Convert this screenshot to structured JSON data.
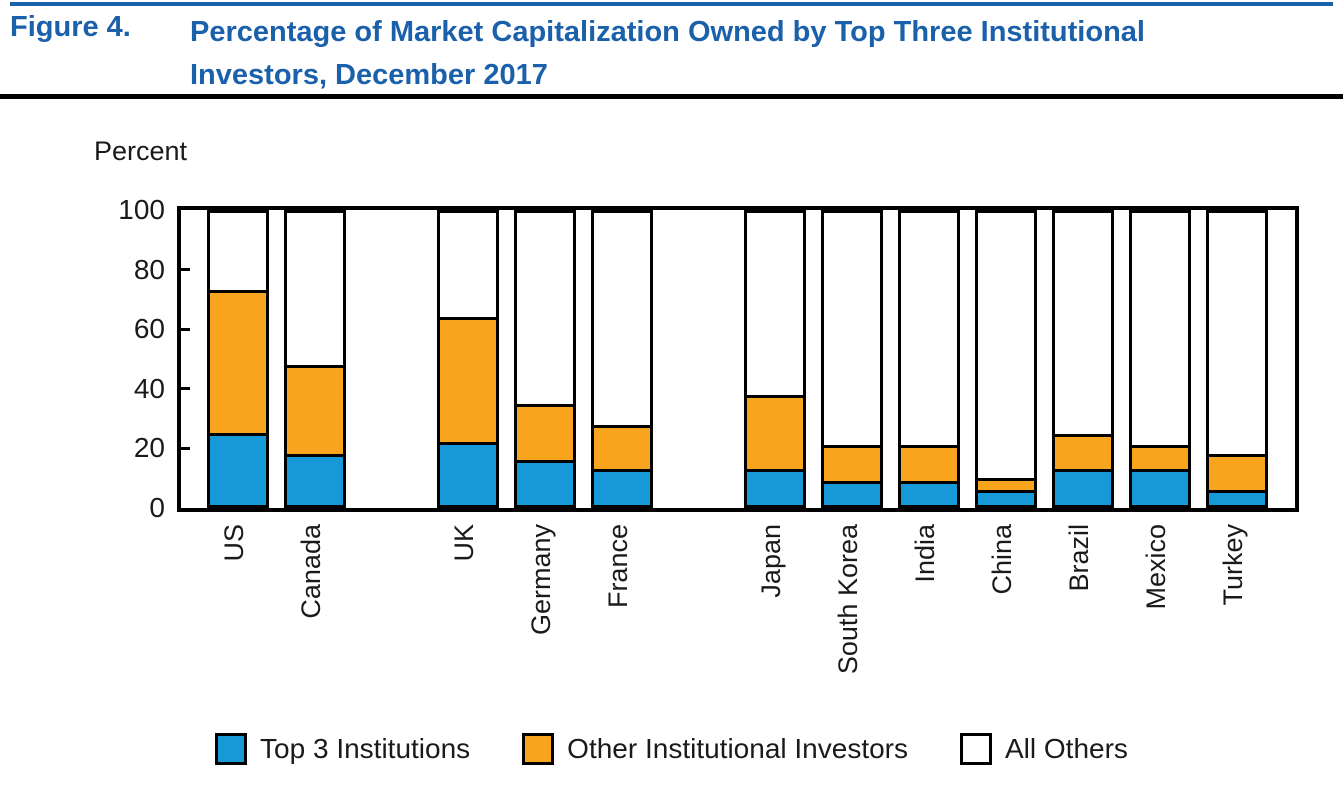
{
  "figure": {
    "label": "Figure 4.",
    "title_line1": "Percentage of Market Capitalization Owned by Top Three Institutional",
    "title_line2": "Investors, December 2017",
    "title_color": "#1a60ab",
    "top_rule_color": "#1a60ab"
  },
  "chart_data": {
    "type": "bar",
    "stacked": true,
    "title": "Percentage of Market Capitalization Owned by Top Three Institutional Investors, December 2017",
    "ylabel": "Percent",
    "xlabel": "",
    "ylim": [
      0,
      100
    ],
    "yticks": [
      0,
      20,
      40,
      60,
      80,
      100
    ],
    "grid": false,
    "legend_position": "bottom",
    "categories": [
      "US",
      "Canada",
      "UK",
      "Germany",
      "France",
      "Japan",
      "South Korea",
      "India",
      "China",
      "Brazil",
      "Mexico",
      "Turkey"
    ],
    "group_sizes": [
      2,
      3,
      7
    ],
    "series": [
      {
        "name": "Top 3 Institutions",
        "color": "#1699d6",
        "values": [
          24,
          17,
          21,
          15,
          12,
          12,
          8,
          8,
          5,
          12,
          12,
          5
        ]
      },
      {
        "name": "Other Institutional Investors",
        "color": "#f9a41d",
        "values": [
          48,
          30,
          42,
          19,
          15,
          25,
          12,
          12,
          4,
          12,
          8,
          12
        ]
      },
      {
        "name": "All Others",
        "color": "#ffffff",
        "values": [
          28,
          53,
          37,
          66,
          73,
          63,
          80,
          80,
          91,
          76,
          80,
          83
        ]
      }
    ],
    "outline_color": "#000000"
  }
}
